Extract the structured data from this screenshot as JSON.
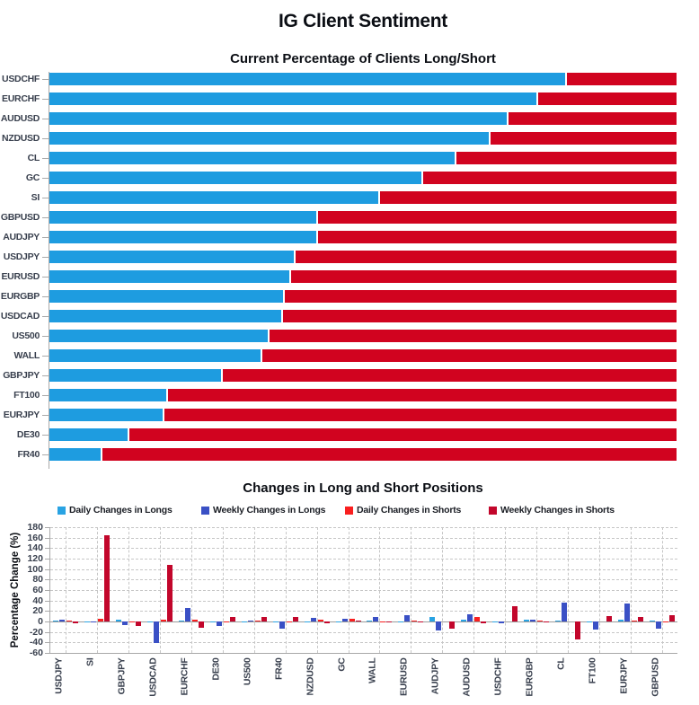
{
  "main_title": "IG Client Sentiment",
  "colors": {
    "long_blue": "#1E9CE0",
    "short_red": "#D1031F",
    "daily_long_blue": "#29A3E3",
    "weekly_long_blue": "#3A50C5",
    "daily_short_red": "#F91F1F",
    "weekly_short_red": "#C2062B",
    "grid": "#c6c6c6",
    "axis": "#a9a9a9"
  },
  "chart_data": [
    {
      "type": "bar",
      "orientation": "horizontal-stacked",
      "title": "Current Percentage of Clients Long/Short",
      "xlim": [
        0,
        100
      ],
      "categories": [
        "USDCHF",
        "EURCHF",
        "AUDUSD",
        "NZDUSD",
        "CL",
        "GC",
        "SI",
        "GBPUSD",
        "AUDJPY",
        "USDJPY",
        "EURUSD",
        "EURGBP",
        "USDCAD",
        "US500",
        "WALL",
        "GBPJPY",
        "FT100",
        "EURJPY",
        "DE30",
        "FR40"
      ],
      "series": [
        {
          "name": "Percent Long",
          "color_key": "long_blue",
          "values": [
            82.3,
            77.7,
            72.9,
            70.1,
            64.6,
            59.3,
            52.4,
            42.6,
            42.5,
            39.0,
            38.3,
            37.2,
            37.0,
            34.8,
            33.7,
            27.4,
            18.6,
            18.1,
            12.5,
            8.2
          ]
        },
        {
          "name": "Percent Short",
          "color_key": "short_red",
          "values": [
            17.7,
            22.3,
            27.1,
            29.9,
            35.4,
            40.7,
            47.6,
            57.4,
            57.5,
            61.0,
            61.7,
            62.8,
            63.0,
            65.2,
            66.3,
            72.6,
            81.4,
            81.9,
            87.5,
            91.8
          ]
        }
      ],
      "legend_position": "none",
      "grid": false
    },
    {
      "type": "bar",
      "orientation": "vertical-grouped",
      "title": "Changes in Long and Short Positions",
      "ylabel": "Percentage Change (%)",
      "ylim": [
        -60,
        180
      ],
      "yticks": [
        180,
        160,
        140,
        120,
        100,
        80,
        60,
        40,
        20,
        0,
        -20,
        -40,
        -60
      ],
      "grid": true,
      "legend_position": "top",
      "categories": [
        "USDJPY",
        "SI",
        "GBPJPY",
        "USDCAD",
        "EURCHF",
        "DE30",
        "US500",
        "FR40",
        "NZDUSD",
        "GC",
        "WALL",
        "EURUSD",
        "AUDJPY",
        "AUDUSD",
        "USDCHF",
        "EURGBP",
        "CL",
        "FT100",
        "EURJPY",
        "GBPUSD"
      ],
      "series": [
        {
          "name": "Daily Changes in Longs",
          "color_key": "daily_long_blue",
          "values": [
            2,
            -1,
            4,
            -1,
            2,
            -1,
            -2,
            -1,
            -2,
            -2,
            2,
            -2,
            8,
            3,
            -1,
            3,
            1,
            -1,
            3,
            2
          ]
        },
        {
          "name": "Weekly Changes in Longs",
          "color_key": "weekly_long_blue",
          "values": [
            4,
            -1,
            -6,
            -41,
            25,
            -9,
            2,
            -13,
            7,
            6,
            8,
            12,
            -17,
            14,
            -3,
            3,
            36,
            -15,
            34,
            -13
          ]
        },
        {
          "name": "Daily Changes in Shorts",
          "color_key": "daily_short_red",
          "values": [
            2,
            6,
            -1,
            3,
            3,
            -2,
            1,
            -1,
            4,
            6,
            -1,
            2,
            0,
            9,
            0,
            2,
            0,
            0,
            2,
            -1
          ]
        },
        {
          "name": "Weekly Changes in Shorts",
          "color_key": "weekly_short_red",
          "values": [
            -4,
            165,
            -9,
            108,
            -12,
            9,
            9,
            9,
            -4,
            2,
            -1,
            -1,
            -13,
            -3,
            30,
            -1,
            -34,
            11,
            9,
            12
          ]
        }
      ]
    }
  ]
}
